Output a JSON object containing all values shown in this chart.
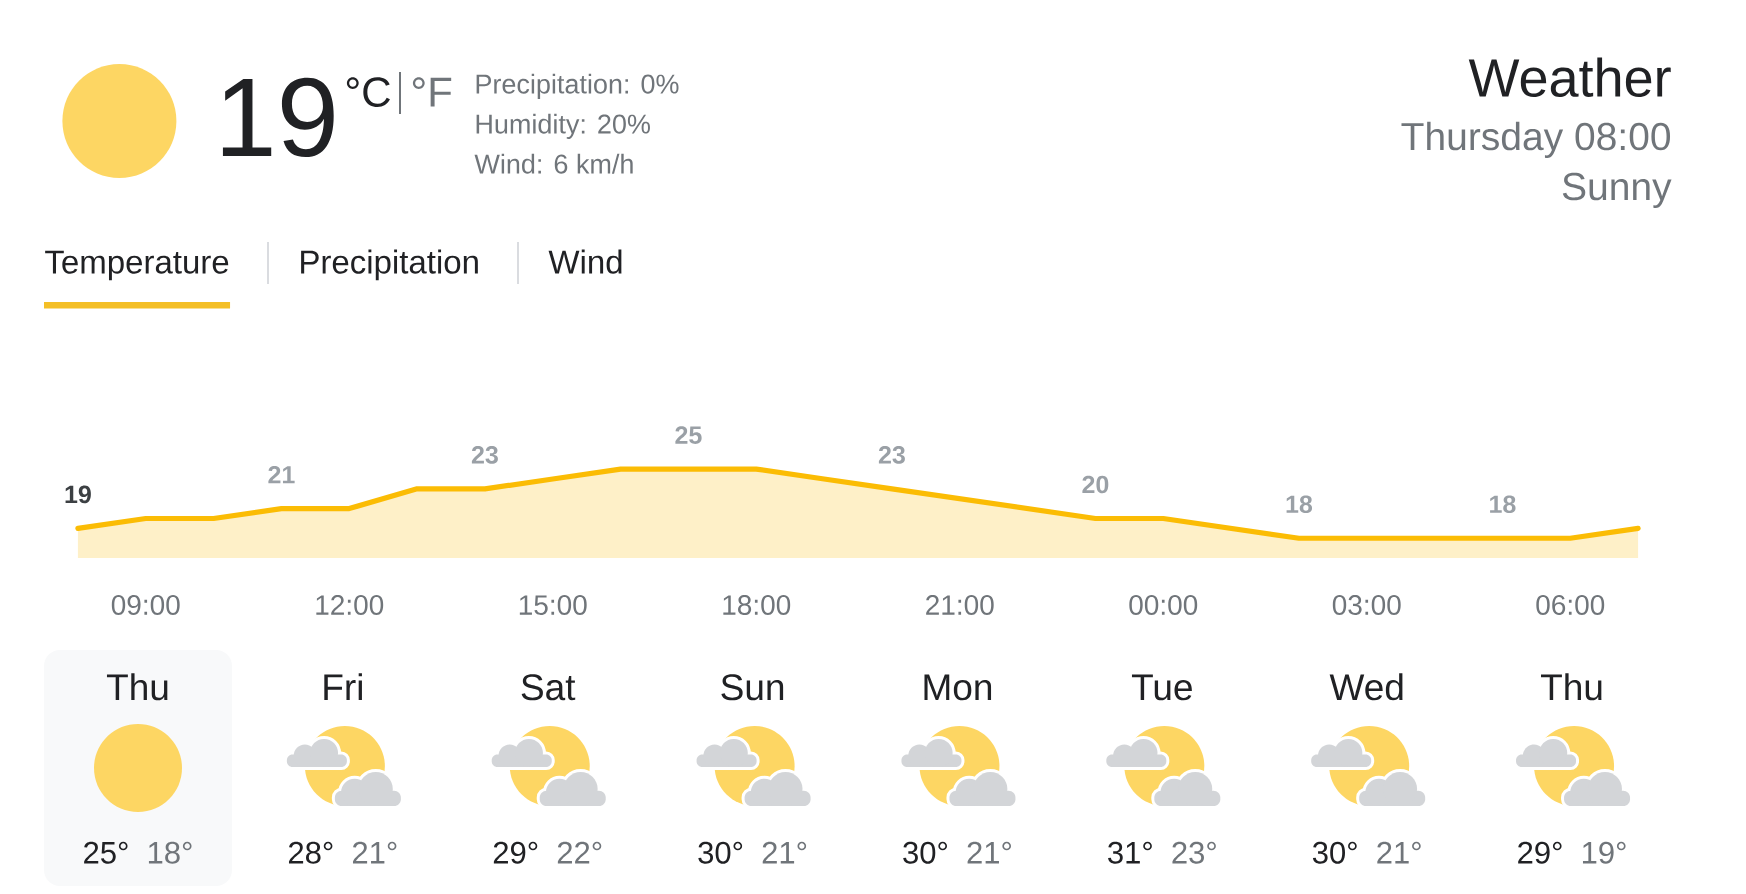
{
  "chart_data": [
    {
      "type": "other",
      "title": "Weather",
      "subtitle": "Thursday 08:00",
      "annotations": [
        "19",
        "°C",
        "°F",
        "Precipitation: 0%",
        "Humidity: 20%",
        "Wind: 6 km/h",
        "Sunny",
        "Temperature",
        "Precipitation",
        "Wind"
      ]
    },
    {
      "type": "area",
      "categories": [
        null,
        "09:00",
        null,
        null,
        "12:00",
        null,
        null,
        "15:00",
        null,
        null,
        "18:00",
        null,
        null,
        "21:00",
        null,
        null,
        "00:00",
        null,
        null,
        "03:00",
        null,
        null,
        "06:00",
        null
      ],
      "values": [
        19,
        20,
        20,
        21,
        21,
        23,
        23,
        24,
        25,
        25,
        25,
        24,
        23,
        22,
        21,
        20,
        20,
        19,
        18,
        18,
        18,
        18,
        18,
        19
      ],
      "value_labels": [
        "19",
        null,
        null,
        "21",
        null,
        null,
        "23",
        null,
        null,
        "25",
        null,
        null,
        "23",
        null,
        null,
        "20",
        null,
        null,
        "18",
        null,
        null,
        "18",
        null,
        null
      ],
      "color": "#fbbc04"
    },
    {
      "type": "other",
      "categories": [
        "Thu",
        "Fri",
        "Sat",
        "Sun",
        "Mon",
        "Tue",
        "Wed",
        "Thu"
      ],
      "annotations": [
        "25°",
        "18°",
        "28°",
        "21°",
        "29°",
        "22°",
        "30°",
        "21°",
        "30°",
        "21°",
        "31°",
        "23°",
        "30°",
        "21°",
        "29°",
        "19°"
      ]
    }
  ]
}
